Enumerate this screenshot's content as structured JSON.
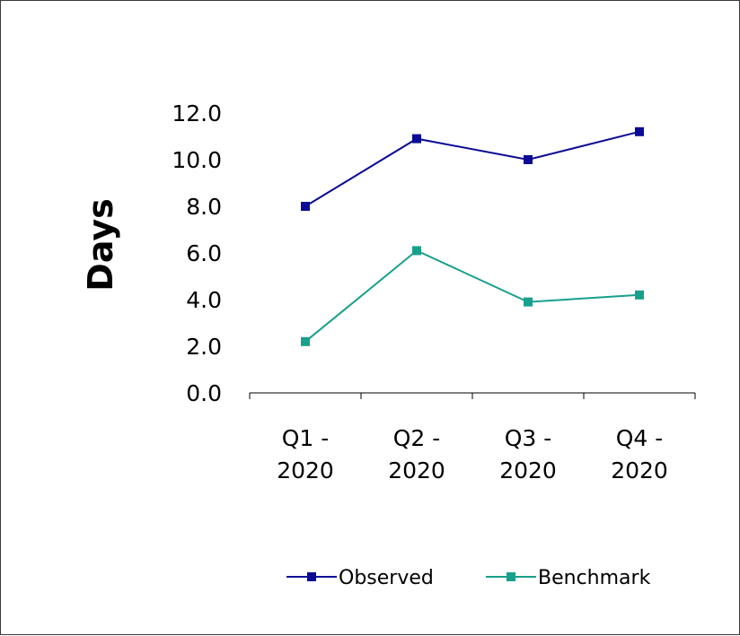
{
  "chart_data": {
    "type": "line",
    "title": "",
    "xlabel": "",
    "ylabel": "Days",
    "categories": [
      [
        "Q1 -",
        "2020"
      ],
      [
        "Q2 -",
        "2020"
      ],
      [
        "Q3 -",
        "2020"
      ],
      [
        "Q4 -",
        "2020"
      ]
    ],
    "ylim": [
      0,
      12
    ],
    "yticks": [
      "0.0",
      "2.0",
      "4.0",
      "6.0",
      "8.0",
      "10.0",
      "12.0"
    ],
    "grid": false,
    "legend": "bottom",
    "series": [
      {
        "name": "Observed",
        "color": "#0a0a96",
        "values": [
          8.0,
          10.9,
          10.0,
          11.2
        ]
      },
      {
        "name": "Benchmark",
        "color": "#17a08c",
        "values": [
          2.2,
          6.1,
          3.9,
          4.2
        ]
      }
    ]
  }
}
